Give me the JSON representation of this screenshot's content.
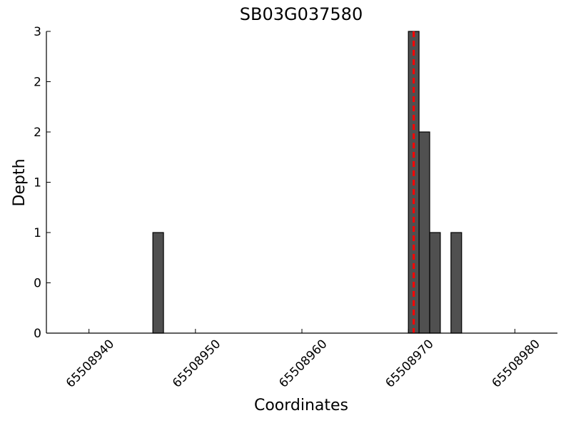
{
  "chart_data": {
    "type": "histogram",
    "title": "SB03G037580",
    "xlabel": "Coordinates",
    "ylabel": "Depth",
    "bins": [
      65508946,
      65508947,
      65508948,
      65508949,
      65508950,
      65508951,
      65508952,
      65508953,
      65508954,
      65508955,
      65508956,
      65508957,
      65508958,
      65508959,
      65508960,
      65508961,
      65508962,
      65508963,
      65508964,
      65508965,
      65508966,
      65508967,
      65508968,
      65508969,
      65508970,
      65508971,
      65508972,
      65508973,
      65508974,
      65508975
    ],
    "values": [
      1,
      0,
      0,
      0,
      0,
      0,
      0,
      0,
      0,
      0,
      0,
      0,
      0,
      0,
      0,
      0,
      0,
      0,
      0,
      0,
      0,
      0,
      0,
      0,
      3,
      2,
      1,
      0,
      1
    ],
    "color": "#505050",
    "vline": {
      "x": 65508970.5,
      "color": "#ff0000"
    },
    "xlim": [
      65508936,
      65508984
    ],
    "xticks": [
      65508940,
      65508950,
      65508960,
      65508970,
      65508980
    ],
    "ylim": [
      0,
      3
    ],
    "yticks": [
      0,
      {
        "value": 0.5,
        "label": "0"
      },
      1,
      {
        "value": 1.5,
        "label": "1"
      },
      2,
      {
        "value": 2.5,
        "label": "2"
      },
      3
    ],
    "grid": false
  }
}
